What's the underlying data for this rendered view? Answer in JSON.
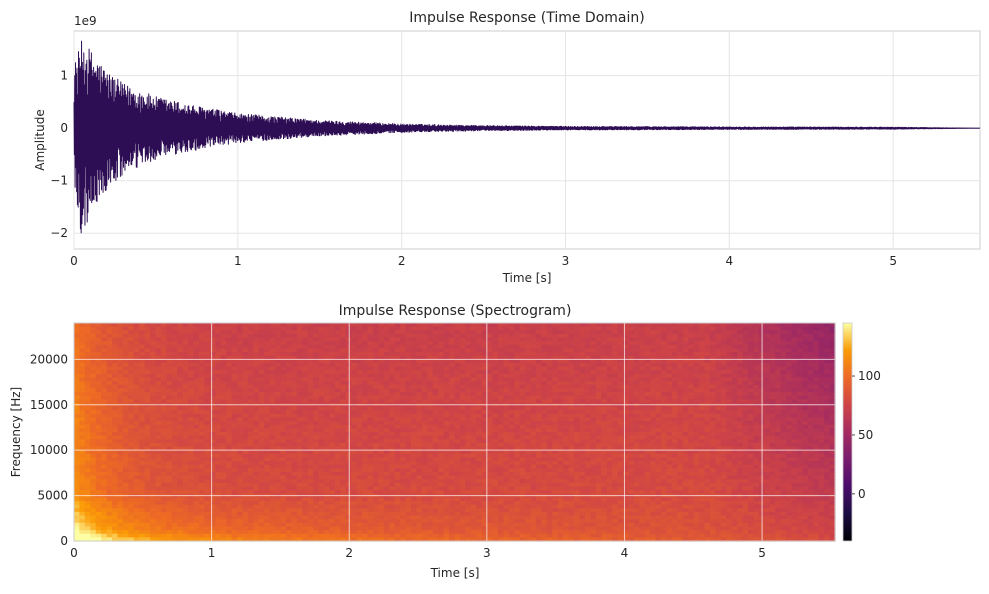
{
  "chart_data": [
    {
      "type": "line",
      "title": "Impulse Response (Time Domain)",
      "xlabel": "Time [s]",
      "ylabel": "Amplitude",
      "offset_label": "1e9",
      "xlim": [
        0,
        5.53
      ],
      "ylim": [
        -2.3,
        1.85
      ],
      "xticks": [
        0,
        1,
        2,
        3,
        4,
        5
      ],
      "xtick_labels": [
        "0",
        "1",
        "2",
        "3",
        "4",
        "5"
      ],
      "yticks": [
        -2,
        -1,
        0,
        1
      ],
      "ytick_labels": [
        "−2",
        "−1",
        "0",
        "1"
      ],
      "grid": true,
      "color": "#2d0d53",
      "envelope": {
        "t": [
          0,
          0.05,
          0.1,
          0.2,
          0.3,
          0.5,
          0.75,
          1.0,
          1.5,
          2.0,
          2.5,
          3.0,
          4.0,
          5.0,
          5.53
        ],
        "upper": [
          1.2,
          1.7,
          1.5,
          1.1,
          0.85,
          0.6,
          0.42,
          0.28,
          0.15,
          0.08,
          0.05,
          0.035,
          0.025,
          0.02,
          0.0
        ],
        "lower": [
          -1.2,
          -2.15,
          -1.6,
          -1.2,
          -0.9,
          -0.6,
          -0.42,
          -0.28,
          -0.15,
          -0.08,
          -0.05,
          -0.035,
          -0.025,
          -0.02,
          0.0
        ]
      }
    },
    {
      "type": "heatmap",
      "title": "Impulse Response (Spectrogram)",
      "xlabel": "Time [s]",
      "ylabel": "Frequency [Hz]",
      "xlim": [
        0,
        5.53
      ],
      "ylim": [
        0,
        24000
      ],
      "xticks": [
        0,
        1,
        2,
        3,
        4,
        5
      ],
      "xtick_labels": [
        "0",
        "1",
        "2",
        "3",
        "4",
        "5"
      ],
      "yticks": [
        0,
        5000,
        10000,
        15000,
        20000
      ],
      "ytick_labels": [
        "0",
        "5000",
        "10000",
        "15000",
        "20000"
      ],
      "colormap": "inferno",
      "colorbar": {
        "min": -40,
        "max": 145,
        "ticks": [
          0,
          50,
          100
        ],
        "tick_labels": [
          "0",
          "50",
          "100"
        ]
      },
      "grid": true
    }
  ]
}
